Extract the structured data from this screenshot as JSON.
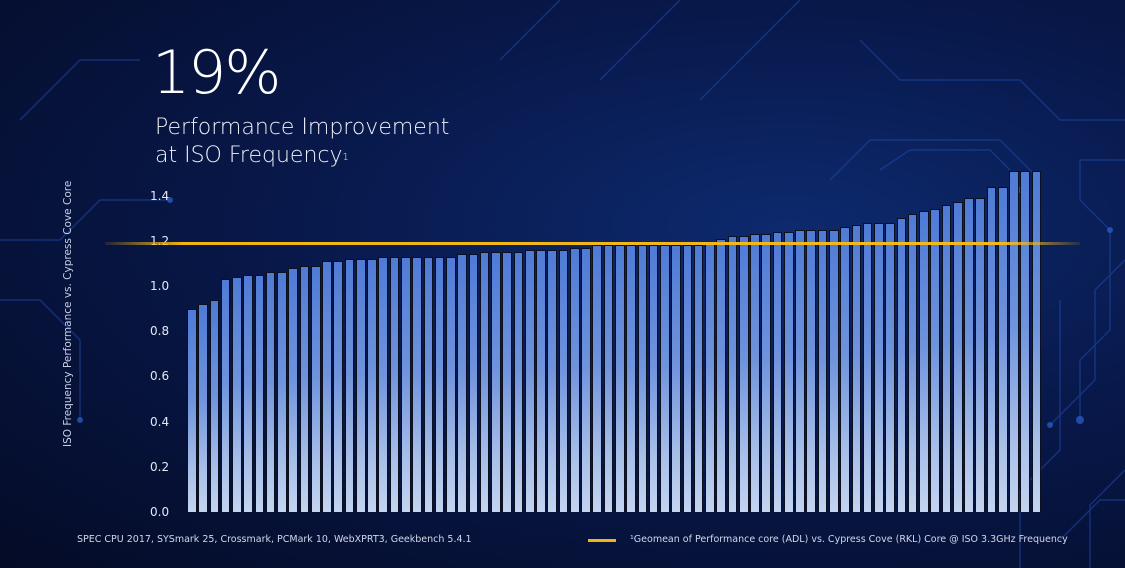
{
  "headline": {
    "value": "19%",
    "line1": "Performance Improvement",
    "line2": "at ISO Frequency",
    "footnote_mark": "1"
  },
  "footer": {
    "benchmarks": "SPEC CPU 2017, SYSmark 25, Crossmark, PCMark 10, WebXPRT3, Geekbench 5.4.1",
    "legend_text": "¹Geomean of Performance core (ADL) vs. Cypress Cove (RKL) Core @ ISO 3.3GHz Frequency",
    "legend_color": "#f0b414"
  },
  "chart_data": {
    "type": "bar",
    "title": "19% Performance Improvement at ISO Frequency",
    "xlabel": "",
    "ylabel": "ISO Frequency Performance vs. Cypress Cove Core",
    "ylim": [
      0,
      1.5
    ],
    "yticks": [
      "0.0",
      "0.2",
      "0.4",
      "0.6",
      "0.8",
      "1.0",
      "1.2",
      "1.4"
    ],
    "grid": false,
    "legend_position": "bottom-right",
    "reference_line": {
      "label": "Geomean of Performance core (ADL) vs. Cypress Cove (RKL) Core @ ISO 3.3GHz Frequency",
      "value": 1.19,
      "color": "#f0b414"
    },
    "bar_color": "#5a83d8",
    "categories": [],
    "values": [
      0.9,
      0.92,
      0.94,
      1.03,
      1.04,
      1.05,
      1.05,
      1.06,
      1.06,
      1.08,
      1.09,
      1.09,
      1.11,
      1.11,
      1.12,
      1.12,
      1.12,
      1.13,
      1.13,
      1.13,
      1.13,
      1.13,
      1.13,
      1.13,
      1.14,
      1.14,
      1.15,
      1.15,
      1.15,
      1.15,
      1.16,
      1.16,
      1.16,
      1.16,
      1.17,
      1.17,
      1.18,
      1.18,
      1.18,
      1.18,
      1.18,
      1.18,
      1.18,
      1.18,
      1.18,
      1.18,
      1.19,
      1.21,
      1.22,
      1.22,
      1.23,
      1.23,
      1.24,
      1.24,
      1.25,
      1.25,
      1.25,
      1.25,
      1.26,
      1.27,
      1.28,
      1.28,
      1.28,
      1.3,
      1.32,
      1.33,
      1.34,
      1.36,
      1.37,
      1.39,
      1.39,
      1.44,
      1.44,
      1.51,
      1.51,
      1.51
    ]
  }
}
